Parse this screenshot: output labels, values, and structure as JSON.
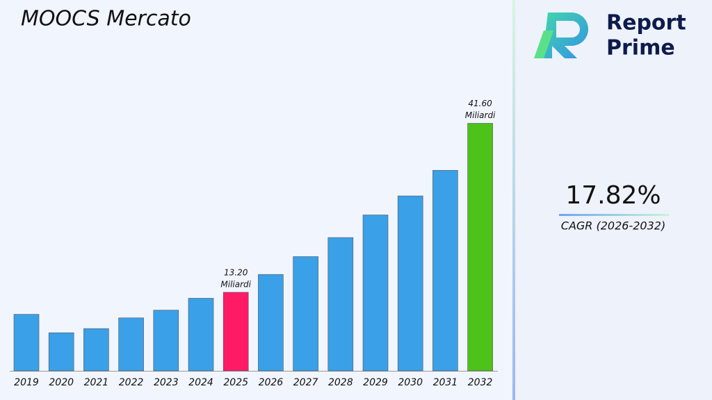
{
  "chart_data": {
    "type": "bar",
    "title": "MOOCS Mercato",
    "categories": [
      "2019",
      "2020",
      "2021",
      "2022",
      "2023",
      "2024",
      "2025",
      "2026",
      "2027",
      "2028",
      "2029",
      "2030",
      "2031",
      "2032"
    ],
    "values": [
      9.5,
      6.4,
      7.1,
      8.9,
      10.2,
      12.2,
      13.2,
      16.2,
      19.2,
      22.4,
      26.2,
      29.4,
      33.7,
      41.6
    ],
    "value_labels": [
      null,
      null,
      null,
      null,
      null,
      null,
      "13.20",
      null,
      null,
      null,
      null,
      null,
      null,
      "41.60"
    ],
    "value_unit": "Miliardi",
    "colors": [
      "#3aa0e8",
      "#3aa0e8",
      "#3aa0e8",
      "#3aa0e8",
      "#3aa0e8",
      "#3aa0e8",
      "#ff1a66",
      "#3aa0e8",
      "#3aa0e8",
      "#3aa0e8",
      "#3aa0e8",
      "#3aa0e8",
      "#3aa0e8",
      "#4cc21a"
    ],
    "ylim": [
      0,
      44
    ]
  },
  "brand": {
    "line1": "Report",
    "line2": "Prime"
  },
  "cagr": {
    "value": "17.82%",
    "label": "CAGR (2026-2032)"
  }
}
